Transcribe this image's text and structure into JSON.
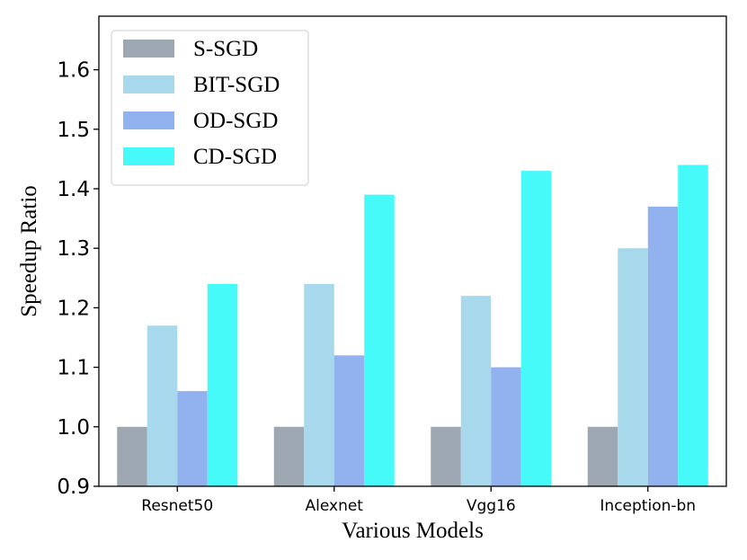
{
  "chart_data": {
    "type": "bar",
    "title": "",
    "xlabel": "Various Models",
    "ylabel": "Speedup Ratio",
    "categories": [
      "Resnet50",
      "Alexnet",
      "Vgg16",
      "Inception-bn"
    ],
    "series": [
      {
        "name": "S-SGD",
        "color": "#9ea8b3",
        "values": [
          1.0,
          1.0,
          1.0,
          1.0
        ]
      },
      {
        "name": "BIT-SGD",
        "color": "#a8d8eb",
        "values": [
          1.17,
          1.24,
          1.22,
          1.3
        ]
      },
      {
        "name": "OD-SGD",
        "color": "#92b2ef",
        "values": [
          1.06,
          1.12,
          1.1,
          1.37
        ]
      },
      {
        "name": "CD-SGD",
        "color": "#46fafa",
        "values": [
          1.24,
          1.39,
          1.43,
          1.44
        ]
      }
    ],
    "ylim": [
      0.9,
      1.69
    ],
    "yticks": [
      "0.9",
      "1.0",
      "1.1",
      "1.2",
      "1.3",
      "1.4",
      "1.5",
      "1.6"
    ],
    "grid": false,
    "legend": "top-left"
  }
}
